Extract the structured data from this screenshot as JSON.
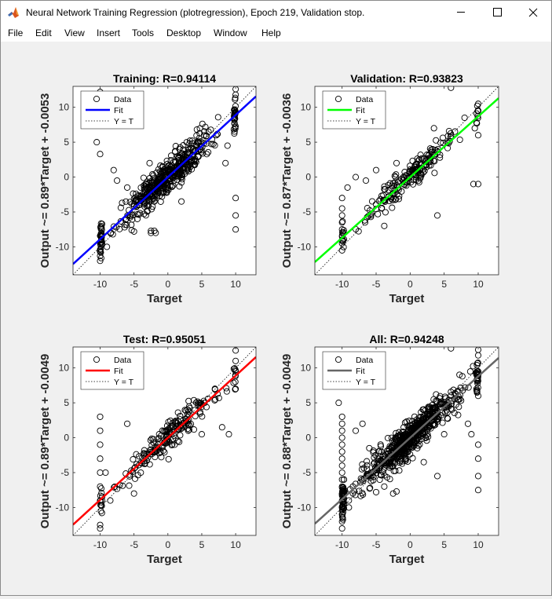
{
  "window": {
    "title": "Neural Network Training Regression (plotregression), Epoch 219, Validation stop."
  },
  "menu": [
    "File",
    "Edit",
    "View",
    "Insert",
    "Tools",
    "Desktop",
    "Window",
    "Help"
  ],
  "colors": {
    "training": "#0000ff",
    "validation": "#00ff00",
    "test": "#ff0000",
    "all": "#666666"
  },
  "chart_data": [
    {
      "type": "scatter",
      "title": "Training: R=0.94114",
      "xlabel": "Target",
      "ylabel": "Output ~= 0.89*Target + -0.0053",
      "xlim": [
        -14,
        13
      ],
      "ylim": [
        -14,
        13
      ],
      "xticks": [
        -10,
        -5,
        0,
        5,
        10
      ],
      "yticks": [
        -10,
        -5,
        0,
        5,
        10
      ],
      "fit": {
        "slope": 0.89,
        "intercept": -0.0053,
        "color": "#0000ff"
      },
      "legend": {
        "position": "top-left",
        "entries": [
          "Data",
          "Fit",
          "Y = T"
        ]
      },
      "outliers": [
        [
          -10,
          12.2
        ],
        [
          -10,
          11
        ],
        [
          -10,
          10
        ],
        [
          -10,
          8.5
        ],
        [
          -10,
          -12
        ],
        [
          -10,
          -11.3
        ],
        [
          -10,
          -10.4
        ],
        [
          -10,
          3.3
        ],
        [
          -10.5,
          5
        ],
        [
          -8.4,
          -8
        ],
        [
          -8,
          1
        ],
        [
          -7.5,
          -0.5
        ],
        [
          -6,
          -1.5
        ],
        [
          -5,
          -7.8
        ],
        [
          -4.5,
          -6
        ],
        [
          -3.3,
          -1
        ],
        [
          -2.7,
          2
        ],
        [
          -2.5,
          -8
        ],
        [
          -2.5,
          -7.7
        ],
        [
          -2,
          -7.7
        ],
        [
          -1.8,
          -8
        ],
        [
          2,
          -3.5
        ],
        [
          2.5,
          0.5
        ],
        [
          4.5,
          5
        ],
        [
          6,
          6.5
        ],
        [
          8.5,
          2
        ],
        [
          10,
          -7.5
        ],
        [
          10,
          -5.5
        ],
        [
          10,
          -3
        ],
        [
          10,
          11.8
        ],
        [
          10,
          12.6
        ],
        [
          8.8,
          4.5
        ],
        [
          -9,
          -10
        ]
      ]
    },
    {
      "type": "scatter",
      "title": "Validation: R=0.93823",
      "xlabel": "Target",
      "ylabel": "Output ~= 0.87*Target + -0.0036",
      "xlim": [
        -14,
        13
      ],
      "ylim": [
        -14,
        13
      ],
      "xticks": [
        -10,
        -5,
        0,
        5,
        10
      ],
      "yticks": [
        -10,
        -5,
        0,
        5,
        10
      ],
      "fit": {
        "slope": 0.87,
        "intercept": -0.0036,
        "color": "#00ff00"
      },
      "legend": {
        "position": "top-left",
        "entries": [
          "Data",
          "Fit",
          "Y = T"
        ]
      },
      "outliers": [
        [
          -10,
          -10.5
        ],
        [
          -10,
          -9.5
        ],
        [
          -10,
          -8.5
        ],
        [
          -10,
          -7.5
        ],
        [
          -10,
          -6.5
        ],
        [
          -10,
          -5.5
        ],
        [
          -10,
          -4.5
        ],
        [
          -10,
          -3
        ],
        [
          -9.2,
          -1.5
        ],
        [
          -8,
          0
        ],
        [
          -6.5,
          -0.5
        ],
        [
          -5,
          1
        ],
        [
          -3.8,
          -7
        ],
        [
          -2,
          2
        ],
        [
          -1,
          0
        ],
        [
          3.5,
          7
        ],
        [
          4,
          -5.5
        ],
        [
          6,
          12.8
        ],
        [
          8,
          8.5
        ],
        [
          9.5,
          7
        ],
        [
          10,
          6
        ],
        [
          10,
          9.5
        ],
        [
          10,
          10.5
        ],
        [
          9.3,
          -1
        ],
        [
          10,
          -1
        ]
      ]
    },
    {
      "type": "scatter",
      "title": "Test: R=0.95051",
      "xlabel": "Target",
      "ylabel": "Output ~= 0.89*Target + -0.0049",
      "xlim": [
        -14,
        13
      ],
      "ylim": [
        -14,
        13
      ],
      "xticks": [
        -10,
        -5,
        0,
        5,
        10
      ],
      "yticks": [
        -10,
        -5,
        0,
        5,
        10
      ],
      "fit": {
        "slope": 0.89,
        "intercept": -0.0049,
        "color": "#ff0000"
      },
      "legend": {
        "position": "top-left",
        "entries": [
          "Data",
          "Fit",
          "Y = T"
        ]
      },
      "outliers": [
        [
          -10,
          -13
        ],
        [
          -10,
          -12.5
        ],
        [
          -10,
          -9
        ],
        [
          -10,
          -7
        ],
        [
          -10,
          -5
        ],
        [
          -10,
          -3
        ],
        [
          -10,
          -1
        ],
        [
          -10,
          1
        ],
        [
          -10,
          3
        ],
        [
          -9.2,
          -5
        ],
        [
          -8.5,
          -9
        ],
        [
          -6,
          2
        ],
        [
          -5,
          -8
        ],
        [
          -4,
          -5
        ],
        [
          1,
          -1
        ],
        [
          3,
          1
        ],
        [
          5,
          0.5
        ],
        [
          7,
          5.5
        ],
        [
          9,
          0.5
        ],
        [
          10,
          7
        ],
        [
          10,
          9.5
        ],
        [
          10,
          11
        ],
        [
          10,
          12.5
        ],
        [
          8,
          1.5
        ]
      ]
    },
    {
      "type": "scatter",
      "title": "All: R=0.94248",
      "xlabel": "Target",
      "ylabel": "Output ~= 0.88*Target + -0.0049",
      "xlim": [
        -14,
        13
      ],
      "ylim": [
        -14,
        13
      ],
      "xticks": [
        -10,
        -5,
        0,
        5,
        10
      ],
      "yticks": [
        -10,
        -5,
        0,
        5,
        10
      ],
      "fit": {
        "slope": 0.88,
        "intercept": -0.0049,
        "color": "#666666"
      },
      "legend": {
        "position": "top-left",
        "entries": [
          "Data",
          "Fit",
          "Y = T"
        ]
      },
      "outliers": [
        [
          -10,
          -13
        ],
        [
          -10,
          -12
        ],
        [
          -10,
          -11
        ],
        [
          -10,
          -10
        ],
        [
          -10,
          -9
        ],
        [
          -10,
          -8
        ],
        [
          -10,
          -7
        ],
        [
          -10,
          -6
        ],
        [
          -10,
          -5
        ],
        [
          -10,
          -4
        ],
        [
          -10,
          -3
        ],
        [
          -10,
          -2
        ],
        [
          -10,
          -1
        ],
        [
          -10,
          0
        ],
        [
          -10,
          1
        ],
        [
          -10,
          2
        ],
        [
          -10,
          3
        ],
        [
          -10.5,
          5
        ],
        [
          -9,
          -10
        ],
        [
          -8.4,
          -8
        ],
        [
          -8,
          1
        ],
        [
          -7,
          2
        ],
        [
          -6,
          -1.5
        ],
        [
          -5,
          -7.8
        ],
        [
          -3.8,
          -7
        ],
        [
          -2.5,
          -8
        ],
        [
          -2,
          -7.7
        ],
        [
          -1,
          0
        ],
        [
          2,
          -3.5
        ],
        [
          4,
          -5.5
        ],
        [
          5,
          0.5
        ],
        [
          6,
          12.8
        ],
        [
          8.5,
          2
        ],
        [
          10,
          -7.5
        ],
        [
          10,
          -5.5
        ],
        [
          10,
          -3
        ],
        [
          10,
          -1
        ],
        [
          10,
          6
        ],
        [
          10,
          9.5
        ],
        [
          10,
          11.8
        ],
        [
          10,
          12.6
        ],
        [
          9,
          0.5
        ]
      ]
    }
  ]
}
